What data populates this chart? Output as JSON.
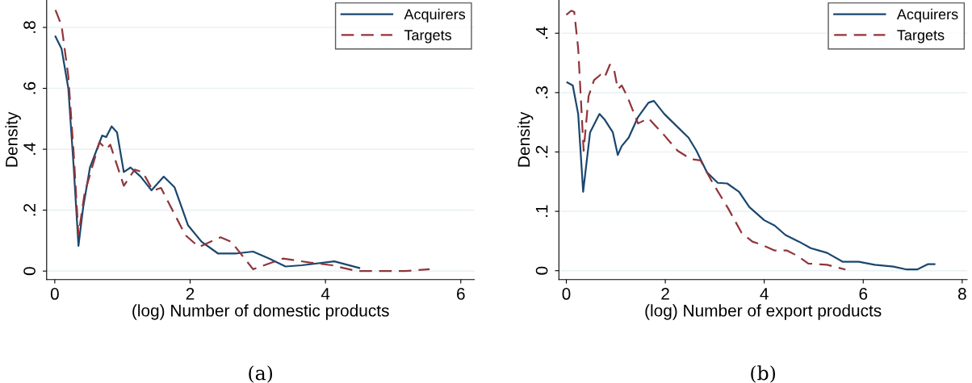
{
  "chart_data": [
    {
      "type": "line",
      "xlabel": "(log) Number of domestic products",
      "ylabel": "Density",
      "annotations": [
        "(a)"
      ],
      "xlim": [
        -0.12,
        6.2
      ],
      "ylim": [
        -0.028,
        0.89
      ],
      "xticks": [
        0,
        2,
        4,
        6
      ],
      "yticks": [
        0,
        {
          "value": 0.2,
          "label": ".2"
        },
        {
          "value": 0.4,
          "label": ".4"
        },
        {
          "value": 0.6,
          "label": ".6"
        },
        {
          "value": 0.8,
          "label": ".8"
        }
      ],
      "grid": "y",
      "legend": "top right",
      "series": [
        {
          "name": "Acquirers",
          "color": "#1a476f",
          "line_style": "solid",
          "x": [
            0.01,
            0.1,
            0.2,
            0.28,
            0.35,
            0.42,
            0.52,
            0.7,
            0.76,
            0.84,
            0.92,
            1.02,
            1.12,
            1.27,
            1.43,
            1.61,
            1.77,
            1.97,
            2.17,
            2.41,
            2.69,
            2.93,
            3.17,
            3.41,
            3.65,
            4.13,
            4.5
          ],
          "values": [
            0.77,
            0.73,
            0.6,
            0.34,
            0.083,
            0.21,
            0.34,
            0.445,
            0.44,
            0.475,
            0.455,
            0.325,
            0.34,
            0.31,
            0.265,
            0.31,
            0.275,
            0.15,
            0.096,
            0.058,
            0.058,
            0.064,
            0.041,
            0.015,
            0.019,
            0.032,
            0.01
          ]
        },
        {
          "name": "Targets",
          "color": "#90353b",
          "line_style": "dashed",
          "x": [
            0.01,
            0.1,
            0.2,
            0.28,
            0.35,
            0.44,
            0.66,
            0.76,
            0.82,
            1.02,
            1.18,
            1.3,
            1.45,
            1.57,
            1.73,
            1.93,
            2.13,
            2.45,
            2.61,
            2.93,
            3.37,
            3.77,
            4.1,
            4.46,
            5.18,
            5.54
          ],
          "values": [
            0.857,
            0.806,
            0.64,
            0.385,
            0.118,
            0.255,
            0.423,
            0.4,
            0.415,
            0.28,
            0.333,
            0.325,
            0.264,
            0.273,
            0.204,
            0.118,
            0.079,
            0.111,
            0.096,
            0.006,
            0.041,
            0.028,
            0.019,
            0.0,
            0.0,
            0.006
          ]
        }
      ]
    },
    {
      "type": "line",
      "xlabel": "(log) Number of export products",
      "ylabel": "Density",
      "annotations": [
        "(b)"
      ],
      "xlim": [
        -0.15,
        8.1
      ],
      "ylim": [
        -0.015,
        0.456
      ],
      "xticks": [
        0,
        2,
        4,
        6,
        8
      ],
      "yticks": [
        0,
        {
          "value": 0.1,
          "label": ".1"
        },
        {
          "value": 0.2,
          "label": ".2"
        },
        {
          "value": 0.3,
          "label": ".3"
        },
        {
          "value": 0.4,
          "label": ".4"
        }
      ],
      "grid": "y",
      "legend": "top right",
      "series": [
        {
          "name": "Acquirers",
          "color": "#1a476f",
          "line_style": "solid",
          "x": [
            0.02,
            0.13,
            0.24,
            0.34,
            0.48,
            0.67,
            0.77,
            0.94,
            1.04,
            1.12,
            1.26,
            1.45,
            1.66,
            1.77,
            1.98,
            2.2,
            2.47,
            2.63,
            2.84,
            3.06,
            3.25,
            3.49,
            3.7,
            4.0,
            4.21,
            4.43,
            4.7,
            4.94,
            5.27,
            5.59,
            5.91,
            6.23,
            6.61,
            6.88,
            7.09,
            7.31,
            7.44
          ],
          "values": [
            0.317,
            0.312,
            0.264,
            0.133,
            0.233,
            0.264,
            0.255,
            0.233,
            0.195,
            0.21,
            0.224,
            0.259,
            0.283,
            0.286,
            0.264,
            0.246,
            0.224,
            0.202,
            0.166,
            0.148,
            0.147,
            0.133,
            0.107,
            0.085,
            0.076,
            0.06,
            0.049,
            0.038,
            0.03,
            0.015,
            0.015,
            0.01,
            0.007,
            0.002,
            0.002,
            0.011,
            0.011
          ]
        },
        {
          "name": "Targets",
          "color": "#90353b",
          "line_style": "dashed",
          "x": [
            0.0,
            0.1,
            0.16,
            0.24,
            0.35,
            0.45,
            0.56,
            0.69,
            0.77,
            0.88,
            0.96,
            1.04,
            1.12,
            1.23,
            1.45,
            1.66,
            1.98,
            2.25,
            2.52,
            2.71,
            2.95,
            3.27,
            3.54,
            3.76,
            3.97,
            4.21,
            4.46,
            4.67,
            4.89,
            5.27,
            5.64
          ],
          "values": [
            0.431,
            0.438,
            0.436,
            0.374,
            0.202,
            0.294,
            0.321,
            0.33,
            0.325,
            0.347,
            0.341,
            0.306,
            0.312,
            0.294,
            0.248,
            0.257,
            0.228,
            0.202,
            0.188,
            0.186,
            0.149,
            0.105,
            0.064,
            0.049,
            0.043,
            0.034,
            0.034,
            0.025,
            0.012,
            0.01,
            0.002
          ]
        }
      ]
    }
  ]
}
